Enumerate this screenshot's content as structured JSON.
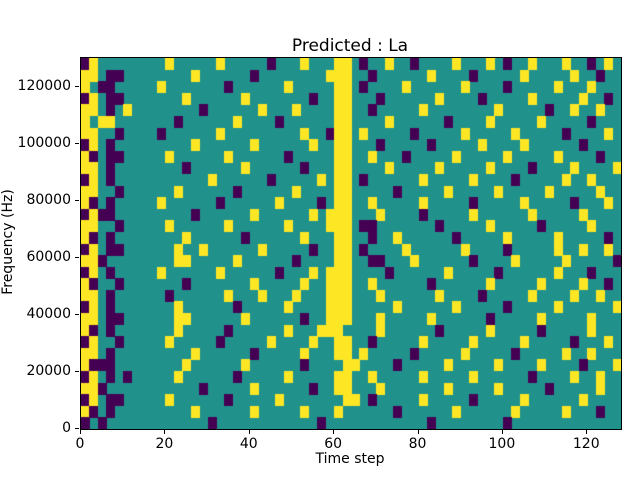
{
  "chart_data": {
    "type": "heatmap",
    "title": "Predicted : La",
    "xlabel": "Time step",
    "ylabel": "Frequency (Hz)",
    "xlim": [
      0,
      128
    ],
    "ylim": [
      0,
      130000
    ],
    "x_ticks": [
      0,
      20,
      40,
      60,
      80,
      100,
      120
    ],
    "y_ticks": [
      0,
      20000,
      40000,
      60000,
      80000,
      100000,
      120000
    ],
    "colormap": "viridis",
    "legend": "none",
    "grid": false,
    "colors": {
      "low": "#440154",
      "mid": "#21918c",
      "high": "#fde725"
    },
    "value_encoding": {
      ".": "mid (background)",
      "1": "high (yellow)",
      "2": "low (dark purple)"
    },
    "grid_shape": [
      32,
      64
    ],
    "rows": [
      "21........1.....1.....2...1...11.2..1..2....1...1.2..1...1..2.1.",
      "11.22........1......2........111..2......1....2.....1.....1..2..",
      "1.22.....1.......2......1.....11.2....1......1....2.....1...1...",
      "21.22.......1......1.......2..11...2......1....2.....1.....1..2.",
      "11.2.1........2......1...1....11..2.....1........1.....2..1..1..",
      "1.11.......2......1....2......11....1......2....1.....1.....2...",
      "11..2....2......1.........1..211.1.....2.....1.....1.....2....1.",
      "21.2.........1......1......1..11...2.....2.....1....1......2....",
      "12.22.....1......1......2.....11..1...2.....1.....1.....1....2..",
      "11.2........2......1......2...11....1.....1.....1....2....1....1",
      "21.2...........1......2.....1.11.2......1.....1....2.....1..1...",
      "11..2......1......2......1....11.....2.....1.....1.....1.....1..",
      "12.2.....1......2......1....2.11..1.....1.....2.....1.....2...1.",
      "2122.........2......1......1.111...1....2.....1......1.....1....",
      "11..2.....1......1......1....111.22.......2.....1.....2.....1...",
      "12.2........1......2......1...11..2..1......2.....1.....1.....2.",
      "21.22......1..1......1.....2..11.2....1......1....2.....1..1..1.",
      "112........11.....1......2....11..22...1......2....1.....1.....2",
      "21.2.....1......1......2...1.111....2......1.....2......1...2...",
      "12..2.......2.......1.....1..111..1......2......1.....1....1..2.",
      "11.2......2......1...1...1...111...1......1....2.....1....1..1..",
      "21.2.......1......2.....1....111.....1......1.....2.....1......1",
      "11.22......11......1......2..111...1.....1......2.....1.....1...",
      "12.2.......1.....2......1...111....1......2.....1.....2.....1...",
      "21..2.....1.....2.....1....1..11..2.....1.....1.....1.....2...1.",
      "11.2.........1......2.....1...11.1.....2.....1.....2.....1..1...",
      "1222........1......1......2....11....2.....1.....1....1....2...1",
      "21.2.2.....1......2.....1.....11..1.....1.....1......2....1..1..",
      "112...........2.....1......2..11...1.......1.....1.....2.....1.",
      "21.22.....1......2.....1.......11.2.....1.....2.....1......1....",
      "12.2.........1......1.....1...1......2......1......1.....1...2..",
      "2.2............2............2............2........2............."
    ]
  }
}
